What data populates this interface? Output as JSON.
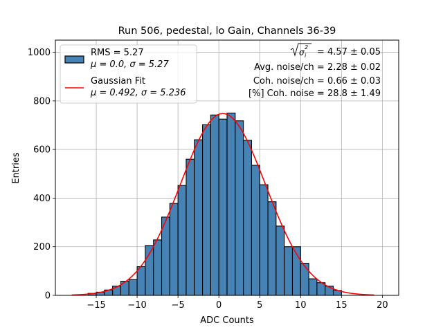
{
  "chart_data": {
    "type": "bar",
    "title": "Run 506, pedestal, lo Gain, Channels 36-39",
    "xlabel": "ADC Counts",
    "ylabel": "Entries",
    "xlim": [
      -20,
      22
    ],
    "ylim": [
      0,
      1050
    ],
    "xticks": [
      -15,
      -10,
      -5,
      0,
      5,
      10,
      15,
      20
    ],
    "yticks": [
      0,
      200,
      400,
      600,
      800,
      1000
    ],
    "grid": true,
    "bar_color": "#4682b4",
    "fit_color": "#ff0000",
    "legend_position": "top-left",
    "legend": {
      "hist_line1": "RMS = 5.27",
      "hist_line2": "μ = 0.0, σ = 5.27",
      "fit_line1": "Gaussian Fit",
      "fit_line2": "μ = 0.492, σ = 5.236"
    },
    "annotations": {
      "sqrt_var_value": " = 4.57 ± 0.05",
      "avg_noise": "Avg. noise/ch = 2.28 ± 0.02",
      "coh_noise": "Coh. noise/ch = 0.66 ± 0.03",
      "pct_coh_noise": "[%] Coh. noise = 28.8 ± 1.49"
    },
    "histogram": {
      "bin_width": 1,
      "bin_starts": [
        -16,
        -15,
        -14,
        -13,
        -12,
        -11,
        -10,
        -9,
        -8,
        -7,
        -6,
        -5,
        -4,
        -3,
        -2,
        -1,
        0,
        1,
        2,
        3,
        4,
        5,
        6,
        7,
        8,
        9,
        10,
        11,
        12,
        13,
        14
      ],
      "counts": [
        8,
        13,
        22,
        38,
        58,
        65,
        118,
        205,
        228,
        322,
        378,
        452,
        560,
        640,
        702,
        742,
        725,
        750,
        718,
        638,
        535,
        455,
        385,
        285,
        200,
        200,
        132,
        68,
        52,
        38,
        20
      ]
    },
    "gaussian_fit": {
      "mu": 0.492,
      "sigma": 5.236,
      "amplitude": 748,
      "x_range": [
        -18,
        19
      ]
    }
  }
}
